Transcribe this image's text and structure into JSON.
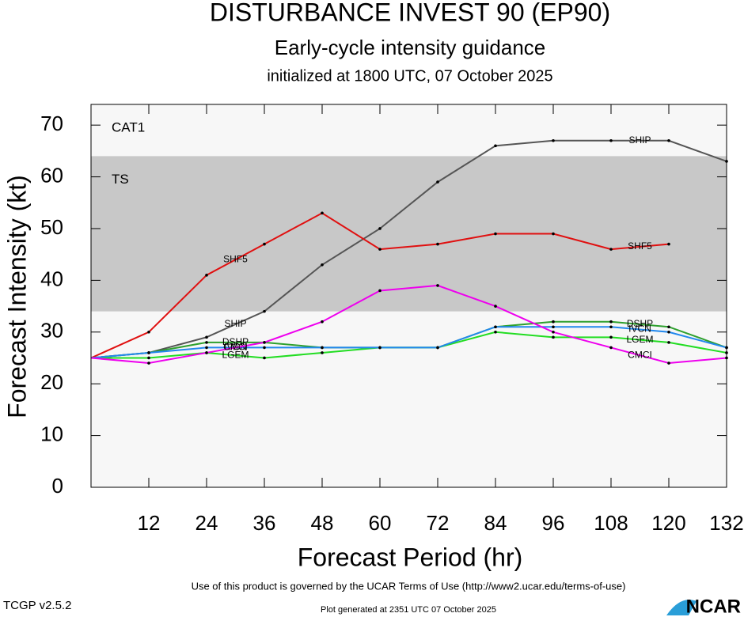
{
  "chart_data": {
    "type": "line",
    "title": "DISTURBANCE INVEST 90 (EP90)",
    "subtitle": "Early-cycle intensity guidance",
    "initialized": "initialized at 1800 UTC, 07 October 2025",
    "x_label": "Forecast Period (hr)",
    "y_label": "Forecast Intensity (kt)",
    "x": [
      0,
      12,
      24,
      36,
      48,
      60,
      72,
      84,
      96,
      108,
      120,
      132
    ],
    "xlim": [
      0,
      132
    ],
    "xticks": [
      12,
      24,
      36,
      48,
      60,
      72,
      84,
      96,
      108,
      120,
      132
    ],
    "ylim": [
      0,
      74
    ],
    "yticks": [
      0,
      10,
      20,
      30,
      40,
      50,
      60,
      70
    ],
    "bands": [
      {
        "label": "CAT1",
        "from": 64,
        "color": "#f7f7f7"
      },
      {
        "label": "TS",
        "from": 34,
        "to": 64,
        "color": "#c8c8c8"
      }
    ],
    "series": [
      {
        "name": "SHIP",
        "color": "#555555",
        "values": [
          25,
          26,
          29,
          34,
          43,
          50,
          59,
          66,
          67,
          67,
          67,
          63
        ]
      },
      {
        "name": "SHF5",
        "color": "#e01010",
        "values": [
          25,
          30,
          41,
          47,
          53,
          46,
          47,
          49,
          49,
          46,
          47,
          null
        ]
      },
      {
        "name": "DSHP",
        "color": "#2ea02e",
        "values": [
          25,
          26,
          28,
          28,
          27,
          27,
          27,
          31,
          32,
          32,
          31,
          27
        ]
      },
      {
        "name": "LGEM",
        "color": "#22dd22",
        "values": [
          25,
          25,
          26,
          25,
          26,
          27,
          27,
          30,
          29,
          29,
          28,
          26
        ]
      },
      {
        "name": "IVCN",
        "color": "#2288ee",
        "values": [
          25,
          26,
          27,
          27,
          27,
          27,
          27,
          31,
          31,
          31,
          30,
          27
        ]
      },
      {
        "name": "CMCI",
        "color": "#ee00ee",
        "values": [
          25,
          24,
          26,
          28,
          32,
          38,
          39,
          35,
          30,
          27,
          24,
          25
        ]
      }
    ],
    "footer": "Use of this product is governed by the UCAR Terms of Use (http://www2.ucar.edu/terms-of-use)",
    "version": "TCGP v2.5.2",
    "generated": "Plot generated at 2351 UTC   07 October 2025",
    "logo": "NCAR"
  }
}
